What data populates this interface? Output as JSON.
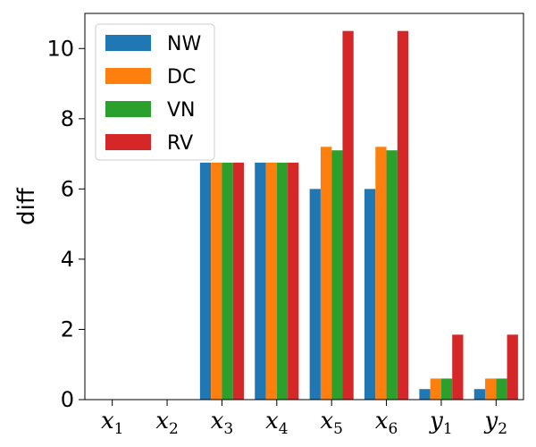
{
  "chart_data": {
    "type": "bar",
    "title": "",
    "xlabel": "",
    "ylabel": "diff",
    "categories": [
      {
        "base": "x",
        "sub": "1"
      },
      {
        "base": "x",
        "sub": "2"
      },
      {
        "base": "x",
        "sub": "3"
      },
      {
        "base": "x",
        "sub": "4"
      },
      {
        "base": "x",
        "sub": "5"
      },
      {
        "base": "x",
        "sub": "6"
      },
      {
        "base": "y",
        "sub": "1"
      },
      {
        "base": "y",
        "sub": "2"
      }
    ],
    "series": [
      {
        "name": "NW",
        "color": "#1f77b4",
        "values": [
          0,
          0,
          6.75,
          6.75,
          6.0,
          6.0,
          0.3,
          0.3
        ]
      },
      {
        "name": "DC",
        "color": "#ff7f0e",
        "values": [
          0,
          0,
          6.75,
          6.75,
          7.2,
          7.2,
          0.6,
          0.6
        ]
      },
      {
        "name": "VN",
        "color": "#2ca02c",
        "values": [
          0,
          0,
          6.75,
          6.75,
          7.1,
          7.1,
          0.6,
          0.6
        ]
      },
      {
        "name": "RV",
        "color": "#d62728",
        "values": [
          0,
          0,
          6.75,
          6.75,
          10.5,
          10.5,
          1.85,
          1.85
        ]
      }
    ],
    "ylim": [
      0,
      11
    ],
    "yticks": [
      "0",
      "2",
      "4",
      "6",
      "8",
      "10"
    ],
    "grid": false,
    "legend": "top-left"
  }
}
